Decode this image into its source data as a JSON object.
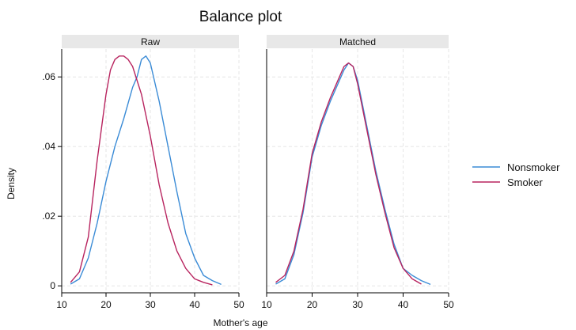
{
  "chart_data": {
    "type": "line",
    "title": "Balance plot",
    "xlabel": "Mother's age",
    "ylabel": "Density",
    "xlim": [
      10,
      50
    ],
    "ylim": [
      -0.002,
      0.068
    ],
    "x_ticks": [
      10,
      20,
      30,
      40,
      50
    ],
    "y_ticks": [
      0,
      0.02,
      0.04,
      0.06
    ],
    "y_tick_labels": [
      "0",
      ".02",
      ".04",
      ".06"
    ],
    "grid": true,
    "legend_position": "right",
    "series_colors": {
      "Nonsmoker": "#3a8bd6",
      "Smoker": "#b8245f"
    },
    "panels": [
      {
        "name": "Raw",
        "series": [
          {
            "name": "Nonsmoker",
            "x": [
              12,
              14,
              16,
              18,
              20,
              22,
              24,
              26,
              27,
              28,
              29,
              30,
              32,
              34,
              36,
              38,
              40,
              42,
              44,
              46
            ],
            "y": [
              0.0005,
              0.002,
              0.008,
              0.018,
              0.03,
              0.04,
              0.048,
              0.057,
              0.06,
              0.065,
              0.066,
              0.064,
              0.053,
              0.04,
              0.027,
              0.015,
              0.008,
              0.003,
              0.0015,
              0.0004
            ]
          },
          {
            "name": "Smoker",
            "x": [
              12,
              14,
              16,
              18,
              20,
              21,
              22,
              23,
              24,
              25,
              26,
              28,
              30,
              32,
              34,
              36,
              38,
              40,
              42,
              44
            ],
            "y": [
              0.001,
              0.004,
              0.014,
              0.036,
              0.055,
              0.062,
              0.065,
              0.066,
              0.066,
              0.065,
              0.063,
              0.055,
              0.043,
              0.029,
              0.018,
              0.01,
              0.005,
              0.002,
              0.001,
              0.0003
            ]
          }
        ]
      },
      {
        "name": "Matched",
        "series": [
          {
            "name": "Nonsmoker",
            "x": [
              12,
              14,
              16,
              18,
              20,
              22,
              24,
              26,
              27,
              28,
              29,
              30,
              32,
              34,
              36,
              38,
              40,
              42,
              44,
              46
            ],
            "y": [
              0.0005,
              0.002,
              0.009,
              0.021,
              0.037,
              0.046,
              0.053,
              0.059,
              0.062,
              0.064,
              0.063,
              0.059,
              0.046,
              0.033,
              0.022,
              0.012,
              0.005,
              0.003,
              0.0015,
              0.0004
            ]
          },
          {
            "name": "Smoker",
            "x": [
              12,
              14,
              16,
              18,
              20,
              22,
              24,
              26,
              27,
              28,
              29,
              30,
              32,
              34,
              36,
              38,
              40,
              42,
              44
            ],
            "y": [
              0.001,
              0.003,
              0.01,
              0.022,
              0.038,
              0.047,
              0.054,
              0.06,
              0.063,
              0.064,
              0.063,
              0.058,
              0.045,
              0.032,
              0.021,
              0.011,
              0.005,
              0.002,
              0.0005
            ]
          }
        ]
      }
    ]
  }
}
